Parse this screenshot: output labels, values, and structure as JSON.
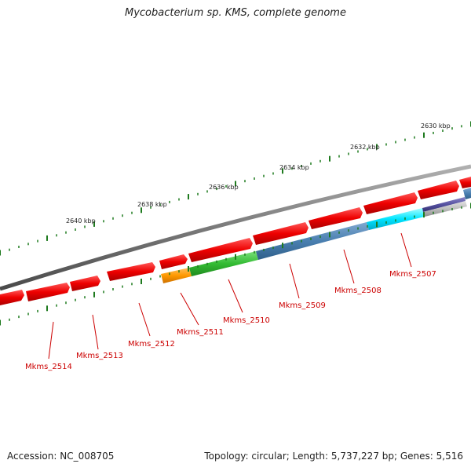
{
  "title": "Mycobacterium sp. KMS, complete genome",
  "footer": {
    "accession": "Accession: NC_008705",
    "info": "Topology: circular; Length: 5,737,227 bp; Genes: 5,516"
  },
  "colors": {
    "backbone": "#808080",
    "tick": "#1e7a1e",
    "gene_red": "#ee1111",
    "label": "#cc0000"
  },
  "scale": {
    "labels": [
      "2630 kbp",
      "2632 kbp",
      "2634 kbp",
      "2636 kbp",
      "2638 kbp",
      "2640 kbp"
    ]
  },
  "genes": {
    "labels": [
      "Mkms_2507",
      "Mkms_2508",
      "Mkms_2509",
      "Mkms_2510",
      "Mkms_2511",
      "Mkms_2512",
      "Mkms_2513",
      "Mkms_2514"
    ]
  }
}
